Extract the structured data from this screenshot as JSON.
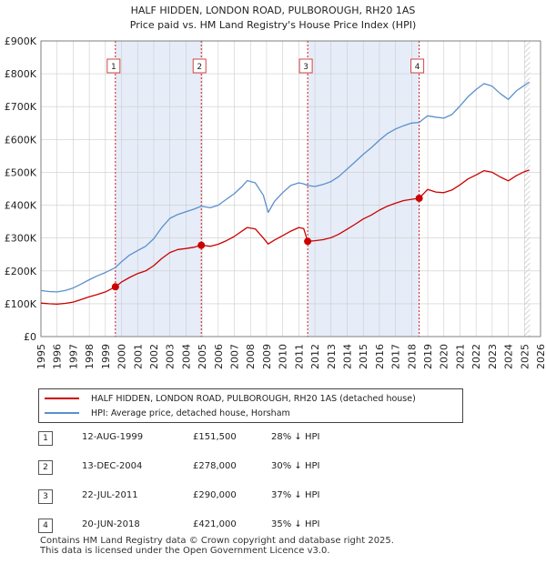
{
  "title": {
    "line1": "HALF HIDDEN, LONDON ROAD, PULBOROUGH, RH20 1AS",
    "line2": "Price paid vs. HM Land Registry's House Price Index (HPI)"
  },
  "chart_data": {
    "type": "line",
    "title": "HALF HIDDEN, LONDON ROAD, PULBOROUGH, RH20 1AS — Price paid vs. HM Land Registry's House Price Index (HPI)",
    "xlim": [
      1995,
      2026
    ],
    "ylim": [
      0,
      900000
    ],
    "x_ticks": [
      1995,
      1996,
      1997,
      1998,
      1999,
      2000,
      2001,
      2002,
      2003,
      2004,
      2005,
      2006,
      2007,
      2008,
      2009,
      2010,
      2011,
      2012,
      2013,
      2014,
      2015,
      2016,
      2017,
      2018,
      2019,
      2020,
      2021,
      2022,
      2023,
      2024,
      2025,
      2026
    ],
    "y_ticks": [
      {
        "value": 0,
        "label": "£0"
      },
      {
        "value": 100000,
        "label": "£100K"
      },
      {
        "value": 200000,
        "label": "£200K"
      },
      {
        "value": 300000,
        "label": "£300K"
      },
      {
        "value": 400000,
        "label": "£400K"
      },
      {
        "value": 500000,
        "label": "£500K"
      },
      {
        "value": 600000,
        "label": "£600K"
      },
      {
        "value": 700000,
        "label": "£700K"
      },
      {
        "value": 800000,
        "label": "£800K"
      },
      {
        "value": 900000,
        "label": "£900K"
      }
    ],
    "shaded_ranges": [
      [
        1999.62,
        2004.95
      ],
      [
        2011.55,
        2018.47
      ]
    ],
    "forecast_start": 2025.0,
    "colors": {
      "property": "#cc0000",
      "hpi": "#5b8fcc",
      "shade": "#e6edf8",
      "grid": "#cccccc",
      "marker_line": "#cc0000"
    },
    "series": [
      {
        "name": "HALF HIDDEN, LONDON ROAD, PULBOROUGH, RH20 1AS (detached house)",
        "key": "property",
        "points": [
          [
            1995.0,
            102000
          ],
          [
            1995.5,
            100000
          ],
          [
            1996.0,
            99000
          ],
          [
            1996.5,
            101000
          ],
          [
            1997.0,
            105000
          ],
          [
            1997.5,
            113000
          ],
          [
            1998.0,
            121000
          ],
          [
            1998.5,
            128000
          ],
          [
            1999.0,
            136000
          ],
          [
            1999.62,
            151500
          ],
          [
            2000.0,
            166000
          ],
          [
            2000.5,
            180000
          ],
          [
            2001.0,
            192000
          ],
          [
            2001.5,
            200000
          ],
          [
            2002.0,
            216000
          ],
          [
            2002.5,
            238000
          ],
          [
            2003.0,
            256000
          ],
          [
            2003.5,
            265000
          ],
          [
            2004.0,
            268000
          ],
          [
            2004.5,
            272000
          ],
          [
            2004.95,
            278000
          ],
          [
            2005.5,
            275000
          ],
          [
            2006.0,
            281000
          ],
          [
            2006.5,
            292000
          ],
          [
            2007.0,
            305000
          ],
          [
            2007.5,
            322000
          ],
          [
            2007.8,
            332000
          ],
          [
            2008.3,
            328000
          ],
          [
            2008.8,
            300000
          ],
          [
            2009.1,
            282000
          ],
          [
            2009.5,
            294000
          ],
          [
            2010.0,
            307000
          ],
          [
            2010.5,
            321000
          ],
          [
            2011.0,
            332000
          ],
          [
            2011.3,
            329000
          ],
          [
            2011.55,
            290000
          ],
          [
            2012.0,
            292000
          ],
          [
            2012.5,
            295000
          ],
          [
            2013.0,
            301000
          ],
          [
            2013.5,
            312000
          ],
          [
            2014.0,
            327000
          ],
          [
            2014.5,
            342000
          ],
          [
            2015.0,
            358000
          ],
          [
            2015.5,
            370000
          ],
          [
            2016.0,
            385000
          ],
          [
            2016.5,
            397000
          ],
          [
            2017.0,
            406000
          ],
          [
            2017.5,
            414000
          ],
          [
            2018.0,
            418000
          ],
          [
            2018.47,
            421000
          ],
          [
            2018.8,
            438000
          ],
          [
            2019.0,
            448000
          ],
          [
            2019.5,
            440000
          ],
          [
            2020.0,
            438000
          ],
          [
            2020.5,
            446000
          ],
          [
            2021.0,
            462000
          ],
          [
            2021.5,
            480000
          ],
          [
            2022.0,
            492000
          ],
          [
            2022.5,
            505000
          ],
          [
            2023.0,
            500000
          ],
          [
            2023.5,
            486000
          ],
          [
            2024.0,
            474000
          ],
          [
            2024.5,
            490000
          ],
          [
            2025.0,
            502000
          ],
          [
            2025.3,
            507000
          ]
        ]
      },
      {
        "name": "HPI: Average price, detached house, Horsham",
        "key": "hpi",
        "points": [
          [
            1995.0,
            140000
          ],
          [
            1995.5,
            137000
          ],
          [
            1996.0,
            136000
          ],
          [
            1996.5,
            140000
          ],
          [
            1997.0,
            148000
          ],
          [
            1997.5,
            160000
          ],
          [
            1998.0,
            173000
          ],
          [
            1998.5,
            185000
          ],
          [
            1999.0,
            195000
          ],
          [
            1999.62,
            210000
          ],
          [
            2000.0,
            228000
          ],
          [
            2000.5,
            248000
          ],
          [
            2001.0,
            262000
          ],
          [
            2001.5,
            275000
          ],
          [
            2002.0,
            298000
          ],
          [
            2002.5,
            332000
          ],
          [
            2003.0,
            360000
          ],
          [
            2003.5,
            372000
          ],
          [
            2004.0,
            380000
          ],
          [
            2004.5,
            388000
          ],
          [
            2004.95,
            397000
          ],
          [
            2005.5,
            392000
          ],
          [
            2006.0,
            400000
          ],
          [
            2006.5,
            418000
          ],
          [
            2007.0,
            435000
          ],
          [
            2007.5,
            458000
          ],
          [
            2007.8,
            475000
          ],
          [
            2008.3,
            468000
          ],
          [
            2008.8,
            430000
          ],
          [
            2009.1,
            378000
          ],
          [
            2009.5,
            412000
          ],
          [
            2010.0,
            438000
          ],
          [
            2010.5,
            460000
          ],
          [
            2011.0,
            468000
          ],
          [
            2011.3,
            465000
          ],
          [
            2011.55,
            460000
          ],
          [
            2012.0,
            457000
          ],
          [
            2012.5,
            463000
          ],
          [
            2013.0,
            472000
          ],
          [
            2013.5,
            488000
          ],
          [
            2014.0,
            510000
          ],
          [
            2014.5,
            532000
          ],
          [
            2015.0,
            555000
          ],
          [
            2015.5,
            575000
          ],
          [
            2016.0,
            598000
          ],
          [
            2016.5,
            618000
          ],
          [
            2017.0,
            632000
          ],
          [
            2017.5,
            642000
          ],
          [
            2018.0,
            650000
          ],
          [
            2018.47,
            652000
          ],
          [
            2018.8,
            665000
          ],
          [
            2019.0,
            672000
          ],
          [
            2019.5,
            668000
          ],
          [
            2020.0,
            665000
          ],
          [
            2020.5,
            676000
          ],
          [
            2021.0,
            702000
          ],
          [
            2021.5,
            730000
          ],
          [
            2022.0,
            752000
          ],
          [
            2022.5,
            770000
          ],
          [
            2023.0,
            762000
          ],
          [
            2023.5,
            740000
          ],
          [
            2024.0,
            722000
          ],
          [
            2024.5,
            748000
          ],
          [
            2025.0,
            765000
          ],
          [
            2025.3,
            775000
          ]
        ]
      }
    ],
    "sales": [
      {
        "id": "1",
        "x": 1999.62,
        "price": 151500
      },
      {
        "id": "2",
        "x": 2004.95,
        "price": 278000
      },
      {
        "id": "3",
        "x": 2011.55,
        "price": 290000
      },
      {
        "id": "4",
        "x": 2018.47,
        "price": 421000
      }
    ]
  },
  "legend": {
    "property_label": "HALF HIDDEN, LONDON ROAD, PULBOROUGH, RH20 1AS (detached house)",
    "hpi_label": "HPI: Average price, detached house, Horsham"
  },
  "sales_table": [
    {
      "num": "1",
      "date": "12-AUG-1999",
      "price": "£151,500",
      "hpi": "28% ↓ HPI"
    },
    {
      "num": "2",
      "date": "13-DEC-2004",
      "price": "£278,000",
      "hpi": "30% ↓ HPI"
    },
    {
      "num": "3",
      "date": "22-JUL-2011",
      "price": "£290,000",
      "hpi": "37% ↓ HPI"
    },
    {
      "num": "4",
      "date": "20-JUN-2018",
      "price": "£421,000",
      "hpi": "35% ↓ HPI"
    }
  ],
  "footer": {
    "line1": "Contains HM Land Registry data © Crown copyright and database right 2025.",
    "line2": "This data is licensed under the Open Government Licence v3.0."
  }
}
